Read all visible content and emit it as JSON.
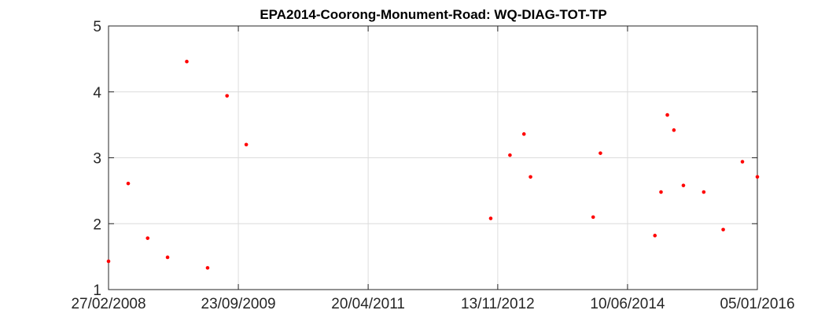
{
  "chart_data": {
    "type": "scatter",
    "title": "EPA2014-Coorong-Monument-Road: WQ-DIAG-TOT-TP",
    "xlabel": "",
    "ylabel": "",
    "ylim": [
      1,
      5
    ],
    "xlim": [
      "2008-02-27",
      "2016-01-05"
    ],
    "grid": true,
    "marker_color": "#ff0000",
    "y_ticks": [
      "1",
      "2",
      "3",
      "4",
      "5"
    ],
    "x_ticks": [
      {
        "date": "2008-02-27",
        "label": "27/02/2008"
      },
      {
        "date": "2009-09-23",
        "label": "23/09/2009"
      },
      {
        "date": "2011-04-20",
        "label": "20/04/2011"
      },
      {
        "date": "2012-11-13",
        "label": "13/11/2012"
      },
      {
        "date": "2014-06-10",
        "label": "10/06/2014"
      },
      {
        "date": "2016-01-05",
        "label": "05/01/2016"
      }
    ],
    "points": [
      {
        "x": "2008-02-27",
        "y": 1.43
      },
      {
        "x": "2008-05-24",
        "y": 2.61
      },
      {
        "x": "2008-08-18",
        "y": 1.78
      },
      {
        "x": "2008-11-14",
        "y": 1.49
      },
      {
        "x": "2009-02-07",
        "y": 4.46
      },
      {
        "x": "2009-05-10",
        "y": 1.33
      },
      {
        "x": "2009-08-04",
        "y": 3.94
      },
      {
        "x": "2009-10-28",
        "y": 3.2
      },
      {
        "x": "2012-10-13",
        "y": 2.08
      },
      {
        "x": "2013-01-06",
        "y": 3.04
      },
      {
        "x": "2013-03-09",
        "y": 3.36
      },
      {
        "x": "2013-04-07",
        "y": 2.71
      },
      {
        "x": "2014-01-09",
        "y": 2.1
      },
      {
        "x": "2014-02-10",
        "y": 3.07
      },
      {
        "x": "2014-10-09",
        "y": 1.82
      },
      {
        "x": "2014-11-05",
        "y": 2.48
      },
      {
        "x": "2014-12-03",
        "y": 3.65
      },
      {
        "x": "2015-01-01",
        "y": 3.42
      },
      {
        "x": "2015-02-12",
        "y": 2.58
      },
      {
        "x": "2015-05-13",
        "y": 2.48
      },
      {
        "x": "2015-08-07",
        "y": 1.91
      },
      {
        "x": "2015-10-31",
        "y": 2.94
      },
      {
        "x": "2016-01-05",
        "y": 2.71
      }
    ]
  }
}
